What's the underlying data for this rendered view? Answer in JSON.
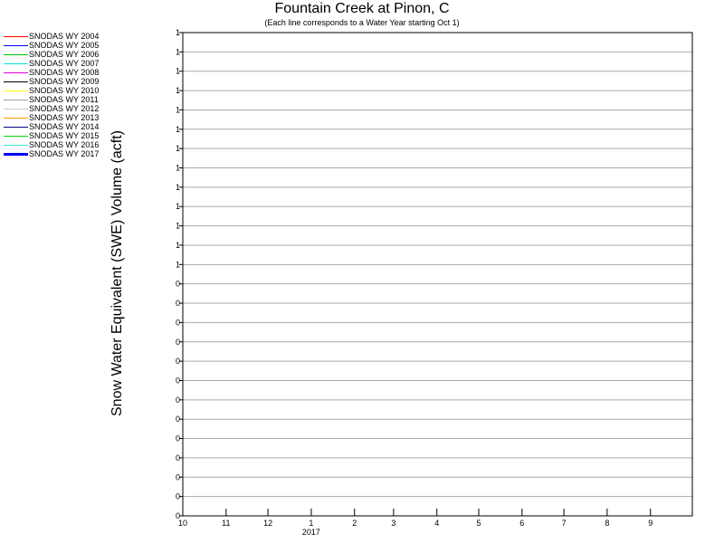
{
  "chart_data": {
    "type": "line",
    "title": "Fountain Creek at Pinon, C",
    "subtitle": "(Each line corresponds to a Water Year starting Oct 1)",
    "ylabel": "Snow Water Equivalent (SWE) Volume (acft)",
    "xlabel": "",
    "x_tick_labels": [
      "10",
      "11",
      "12",
      "1",
      "2",
      "3",
      "4",
      "5",
      "6",
      "7",
      "8",
      "9"
    ],
    "x_year_label": "2017",
    "y_tick_labels": [
      "1",
      "1",
      "1",
      "1",
      "1",
      "1",
      "1",
      "1",
      "1",
      "1",
      "1",
      "1",
      "1",
      "0",
      "0",
      "0",
      "0",
      "0",
      "0",
      "0",
      "0",
      "0",
      "0",
      "0",
      "0",
      "0"
    ],
    "grid": true,
    "legend_position": "top-left",
    "series": [
      {
        "name": "SNODAS WY 2004",
        "color": "#ff0000",
        "values": []
      },
      {
        "name": "SNODAS WY 2005",
        "color": "#0000ff",
        "values": []
      },
      {
        "name": "SNODAS WY 2006",
        "color": "#00c000",
        "values": []
      },
      {
        "name": "SNODAS WY 2007",
        "color": "#00e0e0",
        "values": []
      },
      {
        "name": "SNODAS WY 2008",
        "color": "#e000e0",
        "values": []
      },
      {
        "name": "SNODAS WY 2009",
        "color": "#000000",
        "values": []
      },
      {
        "name": "SNODAS WY 2010",
        "color": "#ffff00",
        "values": []
      },
      {
        "name": "SNODAS WY 2011",
        "color": "#a0a0a0",
        "values": []
      },
      {
        "name": "SNODAS WY 2012",
        "color": "#c8c8c8",
        "values": []
      },
      {
        "name": "SNODAS WY 2013",
        "color": "#ffa000",
        "values": []
      },
      {
        "name": "SNODAS WY 2014",
        "color": "#000080",
        "values": []
      },
      {
        "name": "SNODAS WY 2015",
        "color": "#00e000",
        "values": []
      },
      {
        "name": "SNODAS WY 2016",
        "color": "#40e0d0",
        "values": []
      },
      {
        "name": "SNODAS WY 2017",
        "color": "#0000ff",
        "emphasized": true,
        "values": []
      }
    ]
  }
}
